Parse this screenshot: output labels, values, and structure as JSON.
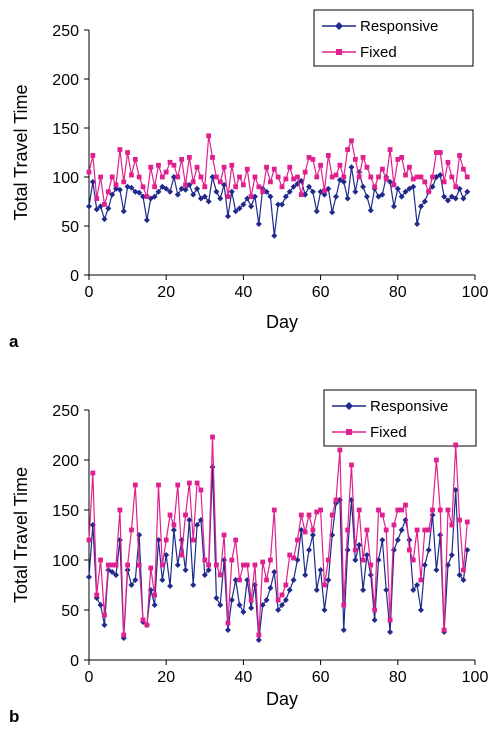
{
  "colors": {
    "responsive": "#1f2a8c",
    "fixed": "#e0208f"
  },
  "chart_data": [
    {
      "type": "line",
      "panel_label": "a",
      "xlabel": "Day",
      "ylabel": "Total Travel Time",
      "xlim": [
        0,
        100
      ],
      "ylim": [
        0,
        250
      ],
      "xticks": [
        "0",
        "20",
        "40",
        "60",
        "80",
        "100"
      ],
      "yticks": [
        "0",
        "50",
        "100",
        "150",
        "200",
        "250"
      ],
      "grid": false,
      "legend_position": "top-right",
      "legend_frame": true,
      "x": [
        0,
        1,
        2,
        3,
        4,
        5,
        6,
        7,
        8,
        9,
        10,
        11,
        12,
        13,
        14,
        15,
        16,
        17,
        18,
        19,
        20,
        21,
        22,
        23,
        24,
        25,
        26,
        27,
        28,
        29,
        30,
        31,
        32,
        33,
        34,
        35,
        36,
        37,
        38,
        39,
        40,
        41,
        42,
        43,
        44,
        45,
        46,
        47,
        48,
        49,
        50,
        51,
        52,
        53,
        54,
        55,
        56,
        57,
        58,
        59,
        60,
        61,
        62,
        63,
        64,
        65,
        66,
        67,
        68,
        69,
        70,
        71,
        72,
        73,
        74,
        75,
        76,
        77,
        78,
        79,
        80,
        81,
        82,
        83,
        84,
        85,
        86,
        87,
        88,
        89,
        90,
        91,
        92,
        93,
        94,
        95,
        96,
        97,
        98
      ],
      "series": [
        {
          "name": "Responsive",
          "color": "#1f2a8c",
          "marker": "diamond",
          "values": [
            70,
            95,
            67,
            70,
            57,
            68,
            82,
            88,
            87,
            65,
            90,
            89,
            85,
            84,
            80,
            56,
            78,
            80,
            85,
            90,
            88,
            85,
            100,
            82,
            88,
            87,
            92,
            82,
            88,
            78,
            80,
            75,
            100,
            85,
            78,
            92,
            60,
            85,
            65,
            68,
            72,
            78,
            70,
            80,
            52,
            88,
            85,
            80,
            40,
            72,
            72,
            80,
            85,
            90,
            93,
            96,
            82,
            90,
            85,
            65,
            85,
            82,
            88,
            64,
            80,
            97,
            95,
            78,
            110,
            85,
            105,
            90,
            80,
            66,
            88,
            80,
            82,
            100,
            95,
            70,
            88,
            80,
            85,
            88,
            90,
            52,
            70,
            75,
            85,
            90,
            100,
            102,
            80,
            76,
            80,
            78,
            88,
            78,
            85
          ]
        },
        {
          "name": "Fixed",
          "color": "#e0208f",
          "marker": "square",
          "values": [
            105,
            122,
            78,
            100,
            72,
            85,
            100,
            92,
            128,
            95,
            125,
            102,
            118,
            100,
            90,
            80,
            110,
            90,
            112,
            100,
            105,
            115,
            112,
            100,
            118,
            92,
            120,
            95,
            110,
            100,
            90,
            142,
            120,
            100,
            95,
            110,
            80,
            112,
            90,
            100,
            92,
            108,
            80,
            100,
            90,
            85,
            110,
            95,
            108,
            100,
            90,
            98,
            110,
            98,
            100,
            82,
            105,
            120,
            118,
            100,
            112,
            86,
            122,
            100,
            102,
            112,
            100,
            128,
            137,
            118,
            100,
            120,
            110,
            100,
            90,
            100,
            108,
            98,
            128,
            92,
            118,
            120,
            102,
            110,
            98,
            100,
            100,
            95,
            85,
            100,
            125,
            125,
            95,
            115,
            100,
            90,
            122,
            108,
            100
          ]
        }
      ]
    },
    {
      "type": "line",
      "panel_label": "b",
      "xlabel": "Day",
      "ylabel": "Total Travel Time",
      "xlim": [
        0,
        100
      ],
      "ylim": [
        0,
        250
      ],
      "xticks": [
        "0",
        "20",
        "40",
        "60",
        "80",
        "100"
      ],
      "yticks": [
        "0",
        "50",
        "100",
        "150",
        "200",
        "250"
      ],
      "grid": false,
      "legend_position": "top-right",
      "legend_frame": true,
      "x": [
        0,
        1,
        2,
        3,
        4,
        5,
        6,
        7,
        8,
        9,
        10,
        11,
        12,
        13,
        14,
        15,
        16,
        17,
        18,
        19,
        20,
        21,
        22,
        23,
        24,
        25,
        26,
        27,
        28,
        29,
        30,
        31,
        32,
        33,
        34,
        35,
        36,
        37,
        38,
        39,
        40,
        41,
        42,
        43,
        44,
        45,
        46,
        47,
        48,
        49,
        50,
        51,
        52,
        53,
        54,
        55,
        56,
        57,
        58,
        59,
        60,
        61,
        62,
        63,
        64,
        65,
        66,
        67,
        68,
        69,
        70,
        71,
        72,
        73,
        74,
        75,
        76,
        77,
        78,
        79,
        80,
        81,
        82,
        83,
        84,
        85,
        86,
        87,
        88,
        89,
        90,
        91,
        92,
        93,
        94,
        95,
        96,
        97,
        98
      ],
      "series": [
        {
          "name": "Responsive",
          "color": "#1f2a8c",
          "marker": "diamond",
          "values": [
            83,
            135,
            62,
            55,
            35,
            90,
            88,
            85,
            120,
            22,
            90,
            75,
            80,
            125,
            38,
            35,
            70,
            55,
            120,
            80,
            105,
            74,
            130,
            95,
            120,
            90,
            140,
            75,
            135,
            140,
            85,
            90,
            193,
            62,
            55,
            100,
            30,
            60,
            80,
            55,
            48,
            80,
            52,
            75,
            20,
            55,
            60,
            72,
            88,
            50,
            55,
            60,
            70,
            80,
            100,
            130,
            85,
            110,
            125,
            70,
            90,
            50,
            80,
            125,
            157,
            160,
            30,
            110,
            160,
            100,
            115,
            70,
            105,
            85,
            40,
            100,
            120,
            70,
            28,
            110,
            120,
            130,
            140,
            120,
            70,
            75,
            50,
            95,
            110,
            145,
            90,
            125,
            28,
            95,
            105,
            170,
            85,
            80,
            110
          ]
        },
        {
          "name": "Fixed",
          "color": "#e0208f",
          "marker": "square",
          "values": [
            120,
            187,
            65,
            100,
            45,
            95,
            95,
            95,
            150,
            25,
            95,
            130,
            175,
            95,
            40,
            35,
            92,
            65,
            175,
            95,
            120,
            145,
            135,
            175,
            105,
            145,
            177,
            120,
            177,
            170,
            100,
            95,
            223,
            95,
            85,
            125,
            37,
            100,
            120,
            80,
            95,
            95,
            60,
            95,
            25,
            98,
            80,
            100,
            150,
            60,
            65,
            75,
            105,
            102,
            120,
            145,
            128,
            145,
            130,
            148,
            150,
            75,
            100,
            145,
            160,
            210,
            55,
            130,
            195,
            110,
            150,
            100,
            130,
            95,
            50,
            150,
            145,
            130,
            40,
            135,
            150,
            150,
            155,
            110,
            100,
            130,
            80,
            130,
            130,
            150,
            200,
            150,
            30,
            150,
            135,
            215,
            140,
            90,
            138
          ]
        }
      ]
    }
  ]
}
